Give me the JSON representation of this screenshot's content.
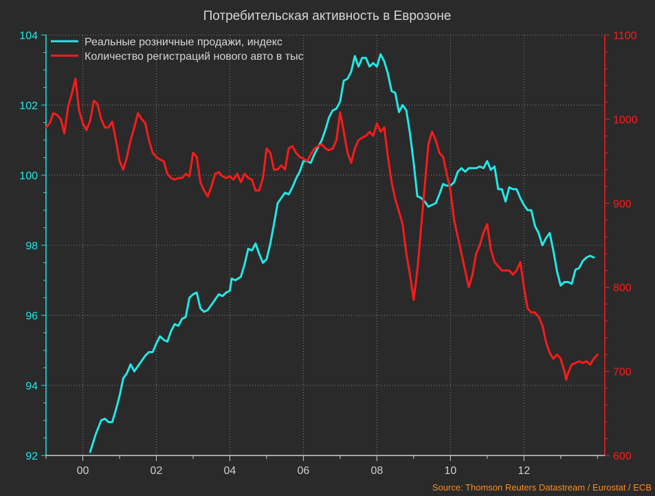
{
  "chart_data": {
    "type": "line",
    "title": "Потребительская активность в Еврозоне",
    "source": "Source: Thomson Reuters Datastream / Eurostat / ECB",
    "xlim": [
      1999.0,
      2014.2
    ],
    "x_ticks": [
      2000,
      2002,
      2004,
      2006,
      2008,
      2010,
      2012
    ],
    "x_tick_labels": [
      "00",
      "02",
      "04",
      "06",
      "08",
      "10",
      "12"
    ],
    "y_left": {
      "lim": [
        92,
        104
      ],
      "ticks": [
        92,
        94,
        96,
        98,
        100,
        102,
        104
      ],
      "color": "#22e8e8"
    },
    "y_right": {
      "lim": [
        600,
        1100
      ],
      "ticks": [
        600,
        700,
        800,
        900,
        1000,
        1100
      ],
      "color": "#ff1a1a"
    },
    "grid": true,
    "legend_position": "top-left",
    "series": [
      {
        "name": "Реальные розничные продажи, индекс",
        "axis": "left",
        "color": "#22e8e8",
        "points": [
          [
            2000.2,
            92.1
          ],
          [
            2000.35,
            92.6
          ],
          [
            2000.5,
            93.0
          ],
          [
            2000.6,
            93.05
          ],
          [
            2000.7,
            92.95
          ],
          [
            2000.8,
            92.95
          ],
          [
            2000.9,
            93.3
          ],
          [
            2001.0,
            93.7
          ],
          [
            2001.1,
            94.2
          ],
          [
            2001.2,
            94.35
          ],
          [
            2001.3,
            94.6
          ],
          [
            2001.4,
            94.4
          ],
          [
            2001.5,
            94.55
          ],
          [
            2001.6,
            94.7
          ],
          [
            2001.7,
            94.85
          ],
          [
            2001.8,
            94.95
          ],
          [
            2001.9,
            94.95
          ],
          [
            2002.0,
            95.2
          ],
          [
            2002.1,
            95.4
          ],
          [
            2002.2,
            95.3
          ],
          [
            2002.3,
            95.25
          ],
          [
            2002.4,
            95.55
          ],
          [
            2002.5,
            95.75
          ],
          [
            2002.6,
            95.7
          ],
          [
            2002.7,
            95.9
          ],
          [
            2002.8,
            95.95
          ],
          [
            2002.9,
            96.5
          ],
          [
            2003.0,
            96.6
          ],
          [
            2003.1,
            96.65
          ],
          [
            2003.2,
            96.2
          ],
          [
            2003.3,
            96.1
          ],
          [
            2003.4,
            96.15
          ],
          [
            2003.5,
            96.3
          ],
          [
            2003.6,
            96.45
          ],
          [
            2003.7,
            96.6
          ],
          [
            2003.8,
            96.55
          ],
          [
            2003.9,
            96.65
          ],
          [
            2004.0,
            96.7
          ],
          [
            2004.05,
            97.05
          ],
          [
            2004.15,
            97.0
          ],
          [
            2004.3,
            97.1
          ],
          [
            2004.4,
            97.45
          ],
          [
            2004.5,
            97.9
          ],
          [
            2004.6,
            97.85
          ],
          [
            2004.7,
            98.05
          ],
          [
            2004.8,
            97.75
          ],
          [
            2004.9,
            97.5
          ],
          [
            2005.0,
            97.6
          ],
          [
            2005.1,
            98.05
          ],
          [
            2005.2,
            98.6
          ],
          [
            2005.3,
            99.2
          ],
          [
            2005.4,
            99.35
          ],
          [
            2005.5,
            99.5
          ],
          [
            2005.6,
            99.45
          ],
          [
            2005.7,
            99.65
          ],
          [
            2005.8,
            99.9
          ],
          [
            2005.9,
            100.1
          ],
          [
            2006.0,
            100.4
          ],
          [
            2006.1,
            100.4
          ],
          [
            2006.2,
            100.35
          ],
          [
            2006.3,
            100.6
          ],
          [
            2006.4,
            100.8
          ],
          [
            2006.5,
            101.0
          ],
          [
            2006.6,
            101.3
          ],
          [
            2006.7,
            101.65
          ],
          [
            2006.8,
            101.85
          ],
          [
            2006.9,
            101.9
          ],
          [
            2007.0,
            102.1
          ],
          [
            2007.1,
            102.7
          ],
          [
            2007.2,
            102.75
          ],
          [
            2007.3,
            102.95
          ],
          [
            2007.4,
            103.4
          ],
          [
            2007.5,
            103.1
          ],
          [
            2007.6,
            103.35
          ],
          [
            2007.7,
            103.35
          ],
          [
            2007.8,
            103.1
          ],
          [
            2007.9,
            103.2
          ],
          [
            2008.0,
            103.1
          ],
          [
            2008.1,
            103.45
          ],
          [
            2008.2,
            103.25
          ],
          [
            2008.3,
            102.9
          ],
          [
            2008.4,
            102.4
          ],
          [
            2008.5,
            102.35
          ],
          [
            2008.6,
            101.8
          ],
          [
            2008.7,
            102.0
          ],
          [
            2008.8,
            101.85
          ],
          [
            2008.9,
            101.2
          ],
          [
            2009.0,
            100.35
          ],
          [
            2009.1,
            99.4
          ],
          [
            2009.2,
            99.35
          ],
          [
            2009.3,
            99.25
          ],
          [
            2009.4,
            99.1
          ],
          [
            2009.5,
            99.15
          ],
          [
            2009.6,
            99.2
          ],
          [
            2009.7,
            99.45
          ],
          [
            2009.8,
            99.75
          ],
          [
            2009.9,
            99.7
          ],
          [
            2010.0,
            99.7
          ],
          [
            2010.1,
            99.8
          ],
          [
            2010.2,
            100.1
          ],
          [
            2010.3,
            100.2
          ],
          [
            2010.4,
            100.1
          ],
          [
            2010.5,
            100.2
          ],
          [
            2010.6,
            100.2
          ],
          [
            2010.7,
            100.2
          ],
          [
            2010.8,
            100.25
          ],
          [
            2010.9,
            100.2
          ],
          [
            2011.0,
            100.4
          ],
          [
            2011.1,
            100.15
          ],
          [
            2011.2,
            100.25
          ],
          [
            2011.3,
            99.6
          ],
          [
            2011.4,
            99.6
          ],
          [
            2011.5,
            99.25
          ],
          [
            2011.6,
            99.65
          ],
          [
            2011.7,
            99.6
          ],
          [
            2011.8,
            99.6
          ],
          [
            2011.9,
            99.35
          ],
          [
            2012.0,
            99.15
          ],
          [
            2012.1,
            99.0
          ],
          [
            2012.2,
            99.0
          ],
          [
            2012.3,
            98.55
          ],
          [
            2012.4,
            98.35
          ],
          [
            2012.5,
            98.0
          ],
          [
            2012.6,
            98.2
          ],
          [
            2012.7,
            98.35
          ],
          [
            2012.8,
            97.85
          ],
          [
            2012.9,
            97.25
          ],
          [
            2013.0,
            96.85
          ],
          [
            2013.1,
            96.95
          ],
          [
            2013.2,
            96.95
          ],
          [
            2013.3,
            96.9
          ],
          [
            2013.4,
            97.3
          ],
          [
            2013.5,
            97.35
          ],
          [
            2013.6,
            97.55
          ],
          [
            2013.7,
            97.65
          ],
          [
            2013.8,
            97.7
          ],
          [
            2013.9,
            97.65
          ]
        ]
      },
      {
        "name": "Количество регистраций нового авто в тыс",
        "axis": "right",
        "color": "#ff1a1a",
        "points": [
          [
            1999.0,
            990
          ],
          [
            1999.1,
            995
          ],
          [
            1999.2,
            1007
          ],
          [
            1999.3,
            1005
          ],
          [
            1999.4,
            1000
          ],
          [
            1999.5,
            983
          ],
          [
            1999.6,
            1015
          ],
          [
            1999.7,
            1030
          ],
          [
            1999.8,
            1048
          ],
          [
            1999.9,
            1010
          ],
          [
            2000.0,
            995
          ],
          [
            2000.1,
            987
          ],
          [
            2000.2,
            998
          ],
          [
            2000.3,
            1022
          ],
          [
            2000.4,
            1018
          ],
          [
            2000.5,
            1000
          ],
          [
            2000.6,
            990
          ],
          [
            2000.7,
            990
          ],
          [
            2000.8,
            997
          ],
          [
            2000.9,
            975
          ],
          [
            2001.0,
            950
          ],
          [
            2001.1,
            940
          ],
          [
            2001.2,
            955
          ],
          [
            2001.3,
            975
          ],
          [
            2001.4,
            990
          ],
          [
            2001.5,
            1007
          ],
          [
            2001.6,
            1000
          ],
          [
            2001.7,
            995
          ],
          [
            2001.8,
            975
          ],
          [
            2001.9,
            960
          ],
          [
            2002.0,
            955
          ],
          [
            2002.1,
            952
          ],
          [
            2002.2,
            950
          ],
          [
            2002.3,
            935
          ],
          [
            2002.4,
            930
          ],
          [
            2002.5,
            928
          ],
          [
            2002.6,
            930
          ],
          [
            2002.7,
            930
          ],
          [
            2002.8,
            935
          ],
          [
            2002.9,
            932
          ],
          [
            2003.0,
            960
          ],
          [
            2003.1,
            955
          ],
          [
            2003.2,
            925
          ],
          [
            2003.3,
            915
          ],
          [
            2003.4,
            908
          ],
          [
            2003.5,
            920
          ],
          [
            2003.6,
            935
          ],
          [
            2003.7,
            937
          ],
          [
            2003.8,
            932
          ],
          [
            2003.9,
            930
          ],
          [
            2004.0,
            932
          ],
          [
            2004.1,
            928
          ],
          [
            2004.2,
            935
          ],
          [
            2004.3,
            925
          ],
          [
            2004.4,
            935
          ],
          [
            2004.5,
            930
          ],
          [
            2004.6,
            928
          ],
          [
            2004.7,
            915
          ],
          [
            2004.8,
            915
          ],
          [
            2004.9,
            930
          ],
          [
            2005.0,
            965
          ],
          [
            2005.1,
            960
          ],
          [
            2005.2,
            940
          ],
          [
            2005.3,
            940
          ],
          [
            2005.4,
            945
          ],
          [
            2005.5,
            940
          ],
          [
            2005.6,
            965
          ],
          [
            2005.7,
            968
          ],
          [
            2005.8,
            960
          ],
          [
            2005.9,
            955
          ],
          [
            2006.0,
            953
          ],
          [
            2006.1,
            950
          ],
          [
            2006.2,
            958
          ],
          [
            2006.3,
            965
          ],
          [
            2006.4,
            968
          ],
          [
            2006.5,
            970
          ],
          [
            2006.6,
            965
          ],
          [
            2006.7,
            963
          ],
          [
            2006.8,
            965
          ],
          [
            2006.9,
            975
          ],
          [
            2007.0,
            1008
          ],
          [
            2007.1,
            985
          ],
          [
            2007.2,
            960
          ],
          [
            2007.3,
            948
          ],
          [
            2007.4,
            965
          ],
          [
            2007.5,
            975
          ],
          [
            2007.6,
            978
          ],
          [
            2007.7,
            980
          ],
          [
            2007.8,
            985
          ],
          [
            2007.9,
            980
          ],
          [
            2008.0,
            995
          ],
          [
            2008.1,
            985
          ],
          [
            2008.2,
            990
          ],
          [
            2008.3,
            955
          ],
          [
            2008.4,
            925
          ],
          [
            2008.5,
            905
          ],
          [
            2008.6,
            890
          ],
          [
            2008.7,
            875
          ],
          [
            2008.8,
            840
          ],
          [
            2008.9,
            815
          ],
          [
            2009.0,
            785
          ],
          [
            2009.1,
            820
          ],
          [
            2009.2,
            870
          ],
          [
            2009.3,
            920
          ],
          [
            2009.4,
            970
          ],
          [
            2009.5,
            985
          ],
          [
            2009.6,
            975
          ],
          [
            2009.7,
            960
          ],
          [
            2009.8,
            955
          ],
          [
            2009.9,
            935
          ],
          [
            2010.0,
            915
          ],
          [
            2010.1,
            880
          ],
          [
            2010.2,
            860
          ],
          [
            2010.3,
            840
          ],
          [
            2010.4,
            820
          ],
          [
            2010.5,
            800
          ],
          [
            2010.6,
            815
          ],
          [
            2010.7,
            840
          ],
          [
            2010.8,
            850
          ],
          [
            2010.9,
            865
          ],
          [
            2011.0,
            875
          ],
          [
            2011.1,
            845
          ],
          [
            2011.2,
            830
          ],
          [
            2011.3,
            825
          ],
          [
            2011.4,
            820
          ],
          [
            2011.5,
            820
          ],
          [
            2011.6,
            820
          ],
          [
            2011.7,
            815
          ],
          [
            2011.8,
            820
          ],
          [
            2011.9,
            830
          ],
          [
            2012.0,
            800
          ],
          [
            2012.1,
            775
          ],
          [
            2012.2,
            770
          ],
          [
            2012.3,
            770
          ],
          [
            2012.4,
            765
          ],
          [
            2012.5,
            755
          ],
          [
            2012.6,
            735
          ],
          [
            2012.7,
            722
          ],
          [
            2012.8,
            715
          ],
          [
            2012.9,
            720
          ],
          [
            2013.0,
            715
          ],
          [
            2013.1,
            700
          ],
          [
            2013.15,
            690
          ],
          [
            2013.2,
            698
          ],
          [
            2013.3,
            708
          ],
          [
            2013.4,
            710
          ],
          [
            2013.5,
            712
          ],
          [
            2013.6,
            710
          ],
          [
            2013.7,
            712
          ],
          [
            2013.8,
            708
          ],
          [
            2013.9,
            715
          ],
          [
            2014.0,
            720
          ]
        ]
      }
    ]
  }
}
